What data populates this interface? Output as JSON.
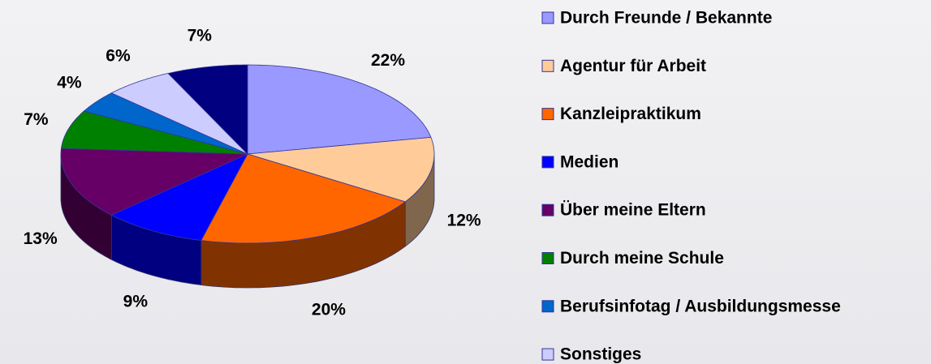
{
  "chart_data": {
    "type": "pie",
    "categories": [
      "Durch Freunde / Bekannte",
      "Agentur für Arbeit",
      "Kanzleipraktikum",
      "Medien",
      "Über meine Eltern",
      "Durch meine Schule",
      "Berufsinfotag / Ausbildungsmesse",
      "Sonstiges",
      null
    ],
    "values": [
      22,
      12,
      20,
      9,
      13,
      7,
      4,
      6,
      7
    ],
    "value_labels": [
      "22%",
      "12%",
      "20%",
      "9%",
      "13%",
      "7%",
      "4%",
      "6%",
      "7%"
    ],
    "colors": [
      "#9999ff",
      "#ffcc99",
      "#ff6600",
      "#0000ff",
      "#660066",
      "#008000",
      "#0066cc",
      "#ccccff",
      "#000080"
    ],
    "legend": "right"
  }
}
